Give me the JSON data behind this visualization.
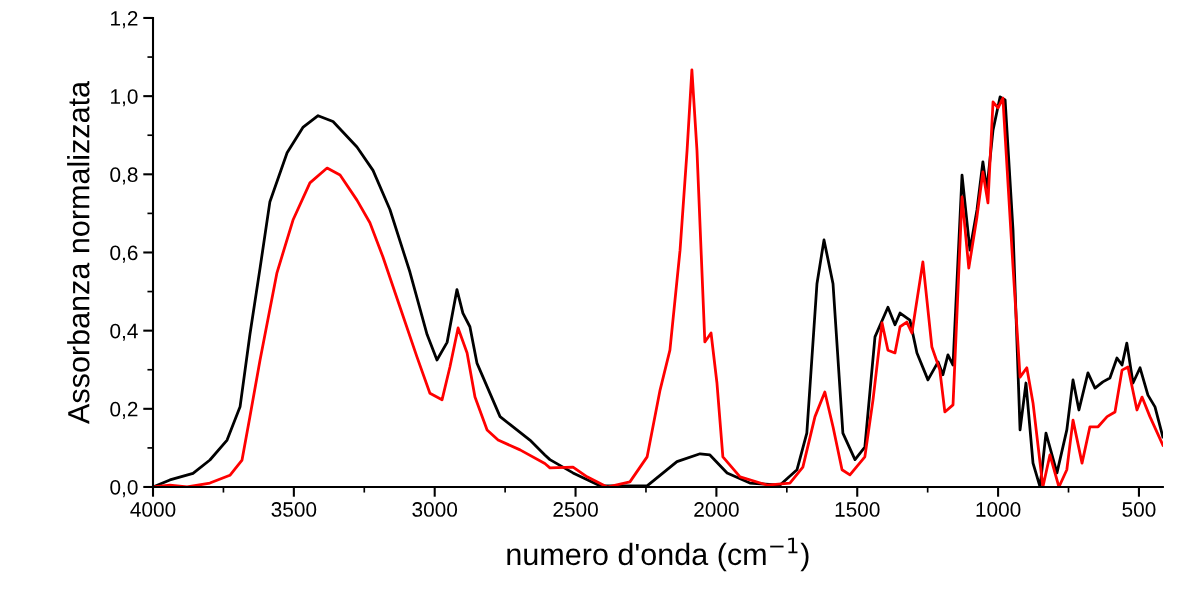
{
  "chart_data": {
    "type": "line",
    "xlabel": "numero d'onda (cm$^{−1}$)",
    "ylabel": "Assorbanza normalizzata",
    "xlim": [
      4000,
      415
    ],
    "ylim": [
      0,
      1.2
    ],
    "xticks": [
      4000,
      3500,
      3000,
      2500,
      2000,
      1500,
      1000,
      500
    ],
    "yticks": [
      {
        "value": 0.0,
        "label": "0,0"
      },
      {
        "value": 0.2,
        "label": "0,2"
      },
      {
        "value": 0.4,
        "label": "0,4"
      },
      {
        "value": 0.6,
        "label": "0,6"
      },
      {
        "value": 0.8,
        "label": "0,8"
      },
      {
        "value": 1.0,
        "label": "1,0"
      },
      {
        "value": 1.2,
        "label": "1,2"
      }
    ],
    "grid": false,
    "marker": "none",
    "line_style": "solid",
    "series": [
      {
        "color": "#000000",
        "x": [
          4000,
          3940,
          3858,
          3798,
          3737,
          3691,
          3656,
          3620,
          3585,
          3524,
          3468,
          3414,
          3361,
          3276,
          3219,
          3159,
          3088,
          3027,
          2992,
          2956,
          2921,
          2900,
          2875,
          2850,
          2768,
          2733,
          2662,
          2609,
          2591,
          2509,
          2413,
          2246,
          2140,
          2058,
          2023,
          1962,
          1881,
          1774,
          1714,
          1679,
          1643,
          1618,
          1586,
          1551,
          1508,
          1473,
          1437,
          1391,
          1366,
          1348,
          1313,
          1288,
          1249,
          1213,
          1196,
          1178,
          1160,
          1128,
          1100,
          1075,
          1054,
          1040,
          1018,
          993,
          975,
          947,
          922,
          901,
          876,
          851,
          830,
          791,
          756,
          734,
          713,
          681,
          656,
          628,
          603,
          578,
          560,
          543,
          521,
          496,
          468,
          443,
          415
        ],
        "values": [
          0.0,
          0.018,
          0.035,
          0.069,
          0.12,
          0.205,
          0.39,
          0.56,
          0.73,
          0.855,
          0.92,
          0.95,
          0.935,
          0.87,
          0.81,
          0.71,
          0.55,
          0.39,
          0.325,
          0.37,
          0.505,
          0.445,
          0.41,
          0.317,
          0.18,
          0.16,
          0.12,
          0.082,
          0.07,
          0.036,
          0.003,
          0.003,
          0.065,
          0.085,
          0.082,
          0.036,
          0.01,
          0.005,
          0.044,
          0.138,
          0.52,
          0.632,
          0.52,
          0.138,
          0.07,
          0.102,
          0.384,
          0.46,
          0.415,
          0.445,
          0.427,
          0.343,
          0.274,
          0.32,
          0.287,
          0.338,
          0.312,
          0.798,
          0.606,
          0.709,
          0.832,
          0.76,
          0.913,
          0.998,
          0.99,
          0.657,
          0.146,
          0.266,
          0.061,
          0.0,
          0.138,
          0.036,
          0.146,
          0.274,
          0.197,
          0.292,
          0.253,
          0.269,
          0.279,
          0.33,
          0.312,
          0.368,
          0.266,
          0.305,
          0.235,
          0.205,
          0.128
        ]
      },
      {
        "color": "#ff0000",
        "x": [
          4000,
          3940,
          3879,
          3798,
          3727,
          3684,
          3656,
          3620,
          3560,
          3503,
          3443,
          3382,
          3336,
          3276,
          3230,
          3184,
          3123,
          3063,
          3017,
          2974,
          2946,
          2917,
          2885,
          2857,
          2814,
          2775,
          2697,
          2609,
          2591,
          2509,
          2459,
          2388,
          2307,
          2246,
          2200,
          2165,
          2129,
          2104,
          2087,
          2069,
          2041,
          2019,
          1998,
          1977,
          1916,
          1820,
          1739,
          1693,
          1650,
          1615,
          1586,
          1554,
          1526,
          1473,
          1444,
          1412,
          1391,
          1366,
          1348,
          1324,
          1306,
          1267,
          1235,
          1207,
          1189,
          1160,
          1128,
          1104,
          1075,
          1054,
          1036,
          1018,
          1000,
          983,
          947,
          922,
          898,
          876,
          841,
          816,
          784,
          756,
          734,
          702,
          674,
          645,
          613,
          585,
          560,
          539,
          507,
          489,
          461,
          415
        ],
        "values": [
          0.0,
          0.005,
          0.0,
          0.01,
          0.03,
          0.069,
          0.18,
          0.325,
          0.548,
          0.683,
          0.778,
          0.816,
          0.798,
          0.734,
          0.676,
          0.589,
          0.46,
          0.333,
          0.24,
          0.223,
          0.307,
          0.407,
          0.343,
          0.23,
          0.146,
          0.12,
          0.095,
          0.06,
          0.049,
          0.051,
          0.026,
          0.0,
          0.013,
          0.077,
          0.248,
          0.35,
          0.606,
          0.862,
          1.067,
          0.862,
          0.371,
          0.394,
          0.266,
          0.077,
          0.026,
          0.005,
          0.01,
          0.051,
          0.18,
          0.243,
          0.154,
          0.044,
          0.031,
          0.077,
          0.223,
          0.42,
          0.35,
          0.343,
          0.41,
          0.422,
          0.394,
          0.576,
          0.358,
          0.3,
          0.192,
          0.21,
          0.742,
          0.56,
          0.691,
          0.806,
          0.727,
          0.985,
          0.97,
          0.995,
          0.563,
          0.281,
          0.305,
          0.215,
          0.0,
          0.082,
          0.0,
          0.044,
          0.171,
          0.061,
          0.154,
          0.154,
          0.18,
          0.192,
          0.299,
          0.307,
          0.197,
          0.23,
          0.18,
          0.107
        ]
      }
    ]
  }
}
